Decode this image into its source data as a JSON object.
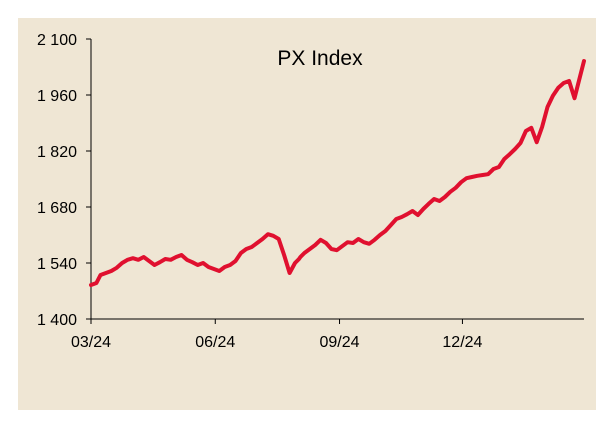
{
  "chart_data": {
    "type": "line",
    "title": "PX Index",
    "xlabel": "",
    "ylabel": "",
    "x_range": [
      "2024-03-01",
      "2025-03-01"
    ],
    "ylim": [
      1400,
      2100
    ],
    "grid": false,
    "legend": "none",
    "line_color": "#e0102f",
    "background_color": "#efe6d4",
    "x_ticks": [
      {
        "label": "03/24",
        "date": "2024-03-01"
      },
      {
        "label": "06/24",
        "date": "2024-06-01"
      },
      {
        "label": "09/24",
        "date": "2024-09-01"
      },
      {
        "label": "12/24",
        "date": "2024-12-01"
      }
    ],
    "y_ticks": [
      {
        "label": "1 400",
        "value": 1400
      },
      {
        "label": "1 540",
        "value": 1540
      },
      {
        "label": "1 680",
        "value": 1680
      },
      {
        "label": "1 820",
        "value": 1820
      },
      {
        "label": "1 960",
        "value": 1960
      },
      {
        "label": "2 100",
        "value": 2100
      }
    ],
    "series": [
      {
        "x": [
          "2024-03-01",
          "2024-03-05",
          "2024-03-08",
          "2024-03-12",
          "2024-03-16",
          "2024-03-20",
          "2024-03-24",
          "2024-03-28",
          "2024-04-01",
          "2024-04-05",
          "2024-04-09",
          "2024-04-13",
          "2024-04-17",
          "2024-04-21",
          "2024-04-25",
          "2024-04-29",
          "2024-05-03",
          "2024-05-07",
          "2024-05-11",
          "2024-05-15",
          "2024-05-19",
          "2024-05-23",
          "2024-05-27",
          "2024-05-31",
          "2024-06-04",
          "2024-06-08",
          "2024-06-12",
          "2024-06-16",
          "2024-06-20",
          "2024-06-24",
          "2024-06-28",
          "2024-07-02",
          "2024-07-06",
          "2024-07-10",
          "2024-07-14",
          "2024-07-18",
          "2024-07-22",
          "2024-07-26",
          "2024-07-30",
          "2024-08-02",
          "2024-08-03",
          "2024-08-06",
          "2024-08-10",
          "2024-08-14",
          "2024-08-18",
          "2024-08-22",
          "2024-08-26",
          "2024-08-30",
          "2024-09-03",
          "2024-09-07",
          "2024-09-11",
          "2024-09-15",
          "2024-09-19",
          "2024-09-23",
          "2024-09-27",
          "2024-10-01",
          "2024-10-05",
          "2024-10-09",
          "2024-10-13",
          "2024-10-17",
          "2024-10-21",
          "2024-10-25",
          "2024-10-29",
          "2024-11-02",
          "2024-11-06",
          "2024-11-10",
          "2024-11-14",
          "2024-11-18",
          "2024-11-22",
          "2024-11-26",
          "2024-11-30",
          "2024-12-04",
          "2024-12-08",
          "2024-12-12",
          "2024-12-16",
          "2024-12-20",
          "2024-12-24",
          "2024-12-28",
          "2025-01-01",
          "2025-01-05",
          "2025-01-09",
          "2025-01-13",
          "2025-01-17",
          "2025-01-21",
          "2025-01-25",
          "2025-01-29",
          "2025-02-02",
          "2025-02-06",
          "2025-02-10",
          "2025-02-14",
          "2025-02-18",
          "2025-02-22",
          "2025-02-26",
          "2025-03-01"
        ],
        "y": [
          1485,
          1490,
          1510,
          1515,
          1520,
          1528,
          1540,
          1548,
          1552,
          1548,
          1555,
          1545,
          1535,
          1542,
          1550,
          1548,
          1555,
          1560,
          1548,
          1542,
          1535,
          1540,
          1530,
          1525,
          1520,
          1530,
          1535,
          1545,
          1565,
          1575,
          1580,
          1590,
          1600,
          1612,
          1608,
          1600,
          1560,
          1515,
          1540,
          1550,
          1555,
          1565,
          1575,
          1585,
          1598,
          1590,
          1575,
          1572,
          1582,
          1592,
          1590,
          1600,
          1592,
          1588,
          1598,
          1610,
          1620,
          1635,
          1650,
          1655,
          1662,
          1670,
          1660,
          1675,
          1688,
          1700,
          1695,
          1705,
          1718,
          1728,
          1742,
          1752,
          1755,
          1758,
          1760,
          1762,
          1775,
          1780,
          1800,
          1812,
          1825,
          1840,
          1870,
          1878,
          1842,
          1880,
          1930,
          1958,
          1978,
          1990,
          1995,
          1952,
          2005,
          2045
        ]
      }
    ]
  }
}
